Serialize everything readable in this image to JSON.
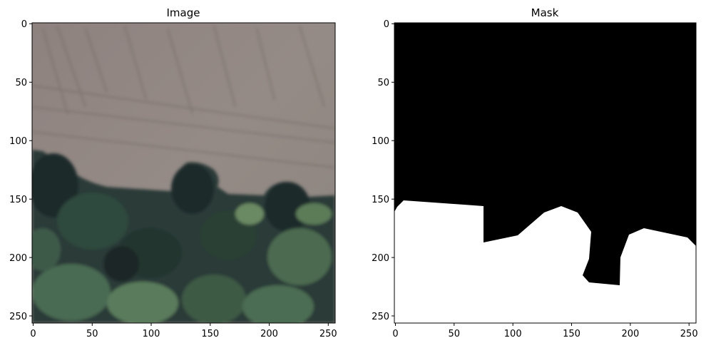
{
  "panels": [
    {
      "title": "Image",
      "content": "aerial-photo",
      "x_ticks": [
        "0",
        "50",
        "100",
        "150",
        "200",
        "250"
      ],
      "y_ticks": [
        "0",
        "50",
        "100",
        "150",
        "200",
        "250"
      ]
    },
    {
      "title": "Mask",
      "content": "binary-mask",
      "x_ticks": [
        "0",
        "50",
        "100",
        "150",
        "200",
        "250"
      ],
      "y_ticks": [
        "0",
        "50",
        "100",
        "150",
        "200",
        "250"
      ]
    }
  ],
  "colors": {
    "field": "#8f8580",
    "forest_dark": "#1f2f2c",
    "forest_mid": "#3f5a45",
    "forest_light": "#6a8a6a",
    "mask_background": "#000000",
    "mask_foreground": "#ffffff"
  }
}
